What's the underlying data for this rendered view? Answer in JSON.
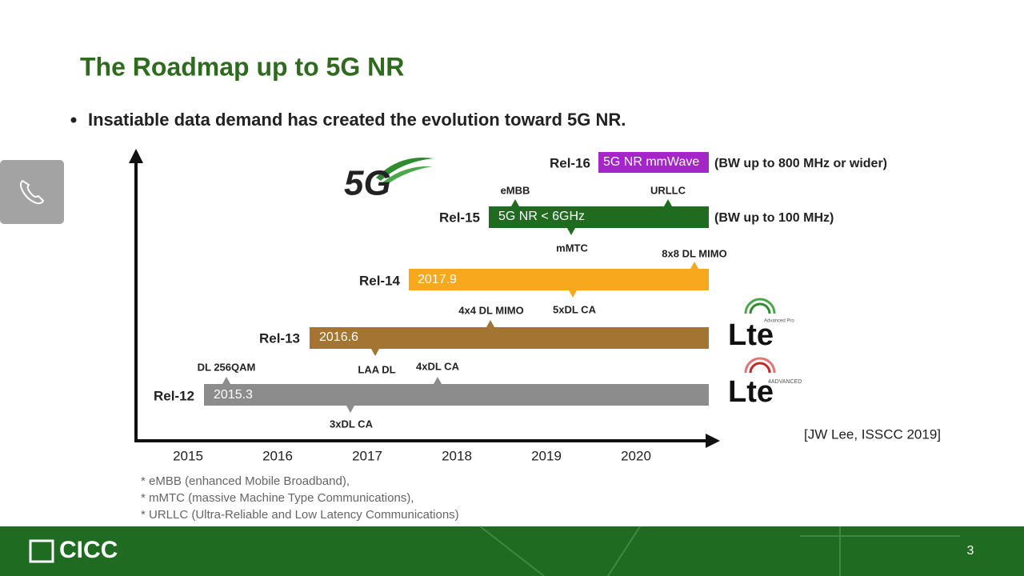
{
  "title": "The Roadmap up to 5G NR",
  "bullet": "Insatiable data demand has created the evolution toward 5G NR.",
  "years": [
    "2015",
    "2016",
    "2017",
    "2018",
    "2019",
    "2020"
  ],
  "releases": [
    {
      "name": "Rel-12",
      "bar_text": "2015.3",
      "annotations": [
        "DL 256QAM",
        "3xDL CA",
        "4xDL CA"
      ]
    },
    {
      "name": "Rel-13",
      "bar_text": "2016.6",
      "annotations": [
        "LAA DL",
        "4x4 DL MIMO"
      ]
    },
    {
      "name": "Rel-14",
      "bar_text": "2017.9",
      "annotations": [
        "5xDL CA",
        "8x8 DL MIMO"
      ]
    },
    {
      "name": "Rel-15",
      "bar_text": "5G NR < 6GHz",
      "annotations": [
        "eMBB",
        "URLLC",
        "mMTC"
      ],
      "note": "(BW up to 100 MHz)"
    },
    {
      "name": "Rel-16",
      "bar_text": "5G NR mmWave",
      "note": "(BW up to 800 MHz or wider)"
    }
  ],
  "logos": {
    "fiveg": "5G",
    "lte_pro": "Lte",
    "lte_pro_tag": "Advanced Pro",
    "lte_adv": "Lte",
    "lte_adv_tag": "4ADVANCED"
  },
  "citation": "[JW Lee, ISSCC 2019]",
  "footnotes": [
    "* eMBB (enhanced Mobile Broadband),",
    "* mMTC (massive Machine Type Communications),",
    "* URLLC (Ultra-Reliable and Low Latency Communications)"
  ],
  "footer": {
    "brand": "CICC",
    "page_number": "3"
  }
}
